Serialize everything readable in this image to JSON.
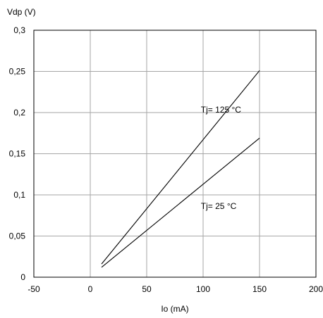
{
  "chart_data": {
    "type": "line",
    "title": "",
    "xlabel": "Io (mA)",
    "ylabel": "Vdp (V)",
    "xlim": [
      -50,
      200
    ],
    "ylim": [
      0,
      0.3
    ],
    "x_ticks": [
      -50,
      0,
      50,
      100,
      150,
      200
    ],
    "x_tick_labels": [
      "-50",
      "0",
      "50",
      "100",
      "150",
      "200"
    ],
    "y_ticks": [
      0,
      0.05,
      0.1,
      0.15,
      0.2,
      0.25,
      0.3
    ],
    "y_tick_labels": [
      "0",
      "0,05",
      "0,1",
      "0,15",
      "0,2",
      "0,25",
      "0,3"
    ],
    "grid": true,
    "series": [
      {
        "name": "Tj= 125 °C",
        "x": [
          10,
          150
        ],
        "y": [
          0.016,
          0.251
        ]
      },
      {
        "name": "Tj= 25 °C",
        "x": [
          10,
          150
        ],
        "y": [
          0.012,
          0.169
        ]
      }
    ],
    "annotations": [
      {
        "text": "Tj= 125 °C",
        "x": 98,
        "y": 0.2
      },
      {
        "text": "Tj= 25 °C",
        "x": 98,
        "y": 0.083
      }
    ]
  }
}
